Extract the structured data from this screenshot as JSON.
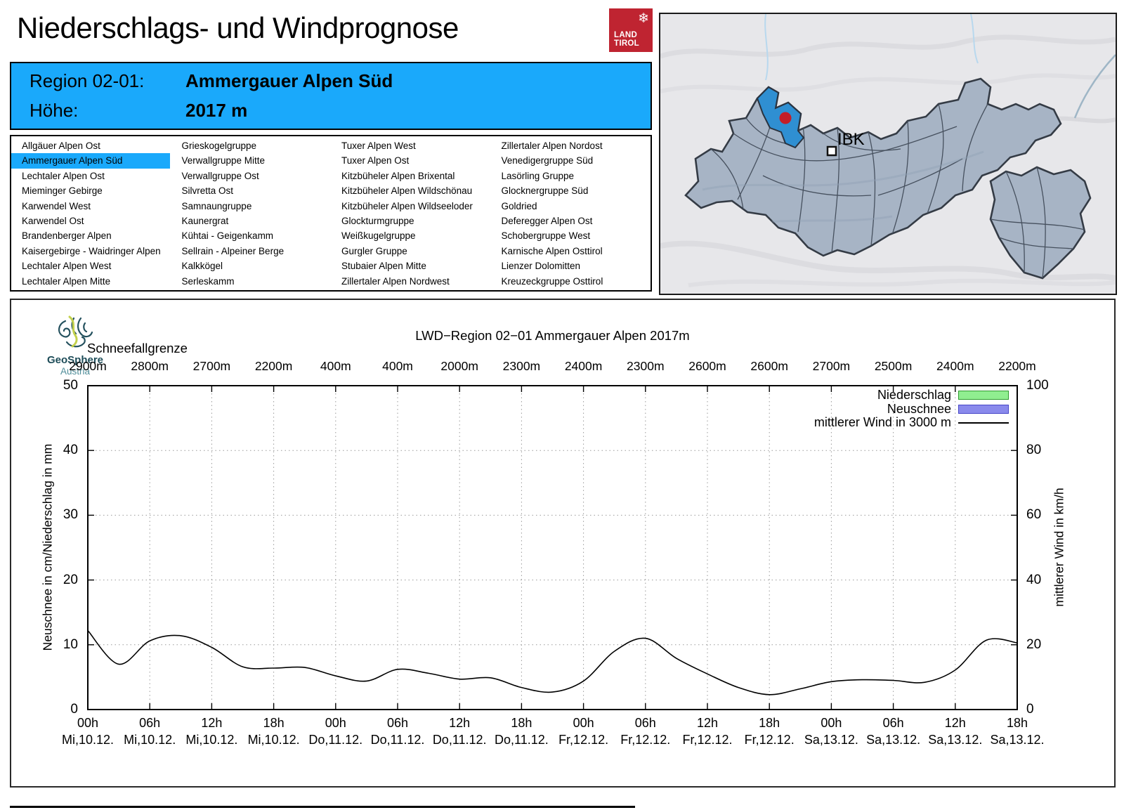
{
  "header": {
    "title": "Niederschlags- und Windprognose"
  },
  "logo": {
    "line1": "LAND",
    "line2": "TIROL",
    "color": "#bf2431"
  },
  "info_box": {
    "region_label": "Region 02-01:",
    "region_value": "Ammergauer Alpen Süd",
    "altitude_label": "Höhe:",
    "altitude_value": "2017 m",
    "background": "#1aa9fb"
  },
  "region_list": {
    "selected": "Ammergauer Alpen Süd",
    "columns": [
      [
        "Allgäuer Alpen Ost",
        "Ammergauer Alpen Süd",
        "Lechtaler Alpen Ost",
        "Mieminger Gebirge",
        "Karwendel West",
        "Karwendel Ost",
        "Brandenberger Alpen",
        "Kaisergebirge - Waidringer Alpen",
        "Lechtaler Alpen West",
        "Lechtaler Alpen Mitte"
      ],
      [
        "Grieskogelgruppe",
        "Verwallgruppe Mitte",
        "Verwallgruppe Ost",
        "Silvretta Ost",
        "Samnaungruppe",
        "Kaunergrat",
        "Kühtai - Geigenkamm",
        "Sellrain - Alpeiner Berge",
        "Kalkkögel",
        "Serleskamm"
      ],
      [
        "Tuxer Alpen West",
        "Tuxer Alpen Ost",
        "Kitzbüheler Alpen Brixental",
        "Kitzbüheler Alpen Wildschönau",
        "Kitzbüheler Alpen Wildseeloder",
        "Glockturmgruppe",
        "Weißkugelgruppe",
        "Gurgler Gruppe",
        "Stubaier Alpen Mitte",
        "Zillertaler Alpen Nordwest"
      ],
      [
        "Zillertaler Alpen Nordost",
        "Venedigergruppe Süd",
        "Lasörling Gruppe",
        "Glocknergruppe Süd",
        "Goldried",
        "Deferegger Alpen Ost",
        "Schobergruppe West",
        "Karnische Alpen Osttirol",
        "Lienzer Dolomitten",
        "Kreuzeckgruppe Osttirol"
      ]
    ]
  },
  "map": {
    "city_label": "IBK",
    "highlight_color": "#2f8fd2",
    "marker_color": "#c41e28",
    "region_fill": "#a7b4c5"
  },
  "branding": {
    "name": "GeoSphere",
    "country": "Austria"
  },
  "chart_data": {
    "type": "line",
    "title": "LWD−Region 02−01 Ammergauer Alpen 2017m",
    "snowline_label": "Schneefallgrenze",
    "snowline_values": [
      "2900m",
      "2800m",
      "2700m",
      "2200m",
      "400m",
      "400m",
      "2000m",
      "2300m",
      "2400m",
      "2300m",
      "2600m",
      "2600m",
      "2700m",
      "2500m",
      "2400m",
      "2200m"
    ],
    "x_tick_hours": [
      "00h",
      "06h",
      "12h",
      "18h",
      "00h",
      "06h",
      "12h",
      "18h",
      "00h",
      "06h",
      "12h",
      "18h",
      "00h",
      "06h",
      "12h",
      "18h"
    ],
    "x_tick_dates": [
      "Mi,10.12.",
      "Mi,10.12.",
      "Mi,10.12.",
      "Mi,10.12.",
      "Do,11.12.",
      "Do,11.12.",
      "Do,11.12.",
      "Do,11.12.",
      "Fr,12.12.",
      "Fr,12.12.",
      "Fr,12.12.",
      "Fr,12.12.",
      "Sa,13.12.",
      "Sa,13.12.",
      "Sa,13.12.",
      "Sa,13.12."
    ],
    "ylabel_left": "Neuschnee in cm/Niederschlag in mm",
    "ylabel_right": "mittlerer Wind in km/h",
    "ylim_left": [
      0,
      50
    ],
    "ylim_right": [
      0,
      100
    ],
    "yticks_left": [
      0,
      10,
      20,
      30,
      40,
      50
    ],
    "yticks_right": [
      0,
      20,
      40,
      60,
      80,
      100
    ],
    "grid": true,
    "legend_position": "top-right inside",
    "legend": [
      {
        "label": "Niederschlag",
        "type": "bar",
        "fill": "#90ee90",
        "border": "#2e9b2e"
      },
      {
        "label": "Neuschnee",
        "type": "bar",
        "fill": "#8a8aec",
        "border": "#4848c8"
      },
      {
        "label": "mittlerer Wind in 3000 m",
        "type": "line",
        "color": "#000000"
      }
    ],
    "bar_series_note": "no Niederschlag/Neuschnee bars are drawn in this forecast period",
    "series": [
      {
        "name": "mittlerer Wind in 3000 m",
        "axis": "right",
        "unit": "km/h",
        "hours": [
          0,
          3,
          6,
          9,
          12,
          15,
          18,
          21,
          24,
          27,
          30,
          33,
          36,
          39,
          42,
          45,
          48,
          51,
          54,
          57,
          60,
          63,
          66,
          69,
          72,
          75,
          78,
          81,
          84,
          87,
          90
        ],
        "values": [
          24.4,
          14,
          21.2,
          22.8,
          19.2,
          13.2,
          12.8,
          13,
          10.4,
          8.8,
          12.4,
          11.2,
          9.4,
          9.8,
          6.8,
          5.4,
          8.8,
          18,
          22,
          15.8,
          11,
          6.8,
          4.6,
          6.4,
          8.6,
          9.2,
          9,
          8.4,
          12.2,
          21.4,
          20.6
        ]
      }
    ]
  }
}
